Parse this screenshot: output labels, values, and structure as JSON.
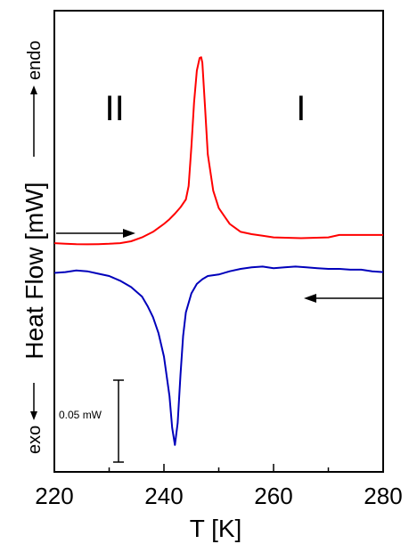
{
  "chart_data": {
    "type": "line",
    "xlabel": "T [K]",
    "ylabel_main": "Heat Flow [mW]",
    "ylabel_exo": "exo",
    "ylabel_endo": "endo",
    "xlim": [
      220,
      280
    ],
    "xticks": [
      "220",
      "240",
      "260",
      "280"
    ],
    "phase_labels": [
      {
        "text": "II",
        "x": 231
      },
      {
        "text": "I",
        "x": 265
      }
    ],
    "scale_bar": {
      "label": "0.05 mW",
      "value": 0.05
    },
    "series": [
      {
        "color": "#ff0000",
        "direction": "heating",
        "x": [
          220,
          222,
          224,
          226,
          228,
          230,
          232,
          234,
          236,
          238,
          240,
          241,
          242,
          243,
          244,
          244.5,
          245,
          245.5,
          246,
          246.5,
          246.8,
          247,
          247.5,
          248,
          249,
          250,
          252,
          254,
          256,
          258,
          260,
          265,
          270,
          272,
          275,
          280
        ],
        "y": [
          -0.0012,
          -0.0015,
          -0.0018,
          -0.0019,
          -0.0018,
          -0.0016,
          -0.0012,
          0.0,
          0.0025,
          0.006,
          0.011,
          0.014,
          0.0175,
          0.0215,
          0.0265,
          0.035,
          0.06,
          0.088,
          0.108,
          0.116,
          0.1165,
          0.113,
          0.085,
          0.055,
          0.032,
          0.021,
          0.011,
          0.006,
          0.0045,
          0.0035,
          0.0025,
          0.002,
          0.0025,
          0.004,
          0.004,
          0.004
        ]
      },
      {
        "color": "#0000bb",
        "direction": "cooling",
        "x": [
          220,
          222,
          224,
          226,
          228,
          230,
          232,
          234,
          236,
          237,
          238,
          239,
          240,
          241,
          241.5,
          242,
          242.5,
          243,
          243.5,
          244,
          245,
          246,
          247,
          248,
          250,
          252,
          254,
          256,
          258,
          260,
          262,
          264,
          266,
          268,
          270,
          272,
          274,
          276,
          278,
          280
        ],
        "y": [
          -0.02,
          -0.0195,
          -0.0185,
          -0.019,
          -0.0205,
          -0.022,
          -0.025,
          -0.029,
          -0.035,
          -0.041,
          -0.048,
          -0.058,
          -0.073,
          -0.098,
          -0.118,
          -0.129,
          -0.115,
          -0.085,
          -0.06,
          -0.045,
          -0.033,
          -0.027,
          -0.024,
          -0.022,
          -0.021,
          -0.019,
          -0.0175,
          -0.0165,
          -0.016,
          -0.017,
          -0.0165,
          -0.016,
          -0.0165,
          -0.017,
          -0.0175,
          -0.0175,
          -0.018,
          -0.018,
          -0.019,
          -0.0195
        ]
      }
    ],
    "ylim": [
      -0.146,
      0.146
    ]
  }
}
